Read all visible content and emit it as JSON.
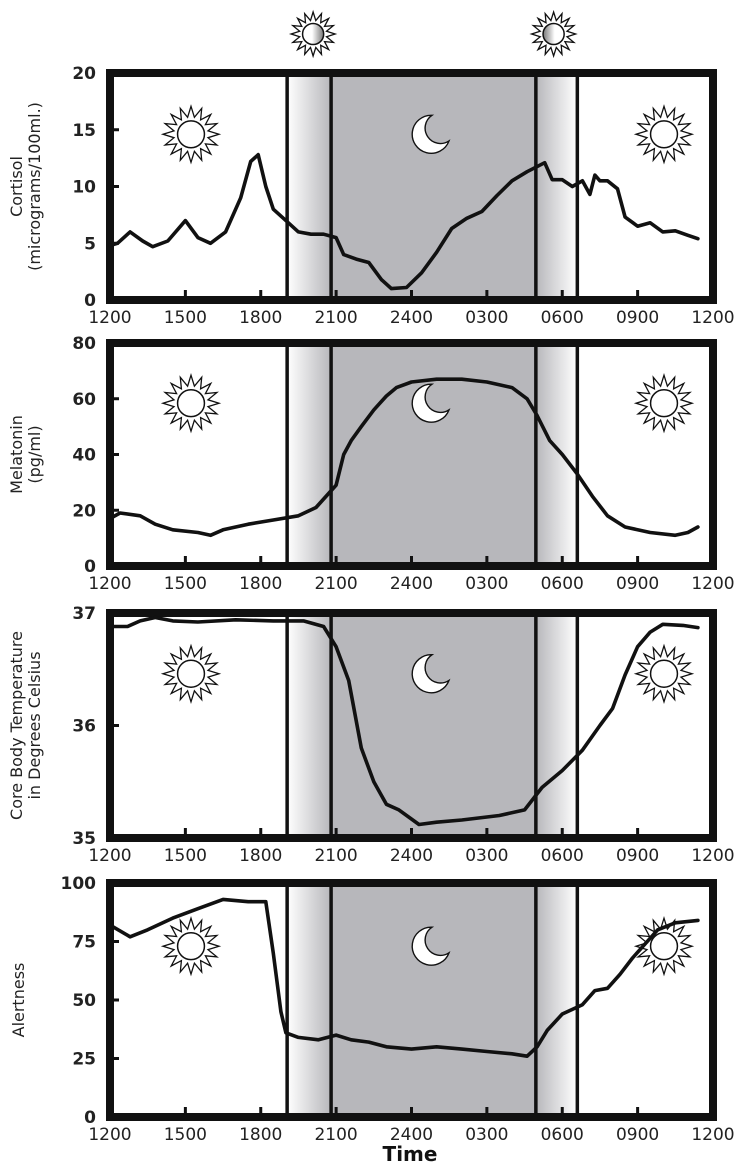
{
  "chart_data": [
    {
      "type": "line",
      "ylabel": [
        "Cortisol",
        "(micrograms/100ml.)"
      ],
      "ylim": [
        0,
        20
      ],
      "yticks": [
        "0",
        "5",
        "10",
        "15",
        "20"
      ],
      "xticks": [
        "1200",
        "1500",
        "1800",
        "2100",
        "2400",
        "0300",
        "0600",
        "0900",
        "1200"
      ],
      "points": [
        [
          0,
          4.8
        ],
        [
          0.3,
          5
        ],
        [
          0.8,
          6
        ],
        [
          1.3,
          5.2
        ],
        [
          1.7,
          4.7
        ],
        [
          2.3,
          5.2
        ],
        [
          3,
          7
        ],
        [
          3.5,
          5.5
        ],
        [
          4,
          5
        ],
        [
          4.6,
          6
        ],
        [
          5.2,
          9
        ],
        [
          5.6,
          12.2
        ],
        [
          5.9,
          12.8
        ],
        [
          6.2,
          10
        ],
        [
          6.5,
          8
        ],
        [
          7,
          7
        ],
        [
          7.5,
          6
        ],
        [
          8,
          5.8
        ],
        [
          8.5,
          5.8
        ],
        [
          9,
          5.5
        ],
        [
          9.3,
          4
        ],
        [
          9.8,
          3.6
        ],
        [
          10.3,
          3.3
        ],
        [
          10.8,
          1.8
        ],
        [
          11.2,
          1
        ],
        [
          11.8,
          1.1
        ],
        [
          12.4,
          2.4
        ],
        [
          13,
          4.2
        ],
        [
          13.6,
          6.3
        ],
        [
          14.2,
          7.2
        ],
        [
          14.8,
          7.8
        ],
        [
          15.4,
          9.2
        ],
        [
          16,
          10.5
        ],
        [
          16.6,
          11.3
        ],
        [
          17.3,
          12.1
        ],
        [
          17.6,
          10.6
        ],
        [
          18,
          10.6
        ],
        [
          18.4,
          10
        ],
        [
          18.8,
          10.5
        ],
        [
          19.1,
          9.3
        ],
        [
          19.3,
          11
        ],
        [
          19.5,
          10.5
        ],
        [
          19.8,
          10.5
        ],
        [
          20.2,
          9.8
        ],
        [
          20.5,
          7.3
        ],
        [
          21,
          6.5
        ],
        [
          21.5,
          6.8
        ],
        [
          22,
          6
        ],
        [
          22.5,
          6.1
        ],
        [
          23,
          5.7
        ],
        [
          23.4,
          5.4
        ]
      ]
    },
    {
      "type": "line",
      "ylabel": [
        "Melatonin",
        "(pg/ml)"
      ],
      "ylim": [
        0,
        80
      ],
      "yticks": [
        "0",
        "20",
        "40",
        "60",
        "80"
      ],
      "xticks": [
        "1200",
        "1500",
        "1800",
        "2100",
        "2400",
        "0300",
        "0600",
        "0900",
        "1200"
      ],
      "points": [
        [
          0,
          17
        ],
        [
          0.4,
          19
        ],
        [
          1.2,
          18
        ],
        [
          1.8,
          15
        ],
        [
          2.5,
          13
        ],
        [
          3.5,
          12
        ],
        [
          4,
          11
        ],
        [
          4.5,
          13
        ],
        [
          5.5,
          15
        ],
        [
          6.5,
          16.5
        ],
        [
          7.5,
          18
        ],
        [
          8.2,
          21
        ],
        [
          8.7,
          26
        ],
        [
          9,
          29
        ],
        [
          9.3,
          40
        ],
        [
          9.6,
          45
        ],
        [
          10,
          50
        ],
        [
          10.5,
          56
        ],
        [
          11,
          61
        ],
        [
          11.4,
          64
        ],
        [
          12,
          66
        ],
        [
          13,
          67
        ],
        [
          14,
          67
        ],
        [
          15,
          66
        ],
        [
          16,
          64
        ],
        [
          16.6,
          60
        ],
        [
          17,
          54
        ],
        [
          17.5,
          45
        ],
        [
          18,
          40
        ],
        [
          18.6,
          33
        ],
        [
          19.2,
          25
        ],
        [
          19.8,
          18
        ],
        [
          20.5,
          14
        ],
        [
          21.5,
          12
        ],
        [
          22.5,
          11
        ],
        [
          23,
          12
        ],
        [
          23.4,
          14
        ]
      ]
    },
    {
      "type": "line",
      "ylabel": [
        "Core Body Temperature",
        "in Degrees Celsius"
      ],
      "ylim": [
        35,
        37
      ],
      "yticks": [
        "35",
        "36",
        "37"
      ],
      "xticks": [
        "1200",
        "1500",
        "1800",
        "2100",
        "2400",
        "0300",
        "0600",
        "0900",
        "1200"
      ],
      "points": [
        [
          0,
          36.88
        ],
        [
          0.7,
          36.88
        ],
        [
          1.2,
          36.93
        ],
        [
          1.8,
          36.96
        ],
        [
          2.5,
          36.93
        ],
        [
          3.5,
          36.92
        ],
        [
          5,
          36.94
        ],
        [
          6.5,
          36.93
        ],
        [
          7.7,
          36.93
        ],
        [
          8.5,
          36.88
        ],
        [
          9,
          36.7
        ],
        [
          9.5,
          36.4
        ],
        [
          10,
          35.8
        ],
        [
          10.5,
          35.5
        ],
        [
          11,
          35.3
        ],
        [
          11.5,
          35.25
        ],
        [
          12.3,
          35.12
        ],
        [
          13,
          35.14
        ],
        [
          14,
          35.16
        ],
        [
          15.5,
          35.2
        ],
        [
          16.5,
          35.25
        ],
        [
          17.2,
          35.45
        ],
        [
          18,
          35.6
        ],
        [
          18.8,
          35.78
        ],
        [
          19.5,
          36
        ],
        [
          20,
          36.15
        ],
        [
          20.5,
          36.45
        ],
        [
          21,
          36.7
        ],
        [
          21.5,
          36.83
        ],
        [
          22,
          36.9
        ],
        [
          22.8,
          36.89
        ],
        [
          23.4,
          36.87
        ]
      ]
    },
    {
      "type": "line",
      "ylabel": [
        "Alertness"
      ],
      "ylim": [
        0,
        100
      ],
      "yticks": [
        "0",
        "25",
        "50",
        "75",
        "100"
      ],
      "xticks": [
        "1200",
        "1500",
        "1800",
        "2100",
        "2400",
        "0300",
        "0600",
        "0900",
        "1200"
      ],
      "xlabel": "Time",
      "points": [
        [
          0,
          82
        ],
        [
          0.8,
          77
        ],
        [
          1.5,
          80
        ],
        [
          2.5,
          85
        ],
        [
          3.5,
          89
        ],
        [
          4.5,
          93
        ],
        [
          5.5,
          92
        ],
        [
          6.2,
          92
        ],
        [
          6.5,
          70
        ],
        [
          6.8,
          45
        ],
        [
          7,
          36
        ],
        [
          7.5,
          34
        ],
        [
          8.3,
          33
        ],
        [
          9,
          35
        ],
        [
          9.6,
          33
        ],
        [
          10.3,
          32
        ],
        [
          11,
          30
        ],
        [
          12,
          29
        ],
        [
          13,
          30
        ],
        [
          14,
          29
        ],
        [
          15,
          28
        ],
        [
          16,
          27
        ],
        [
          16.6,
          26
        ],
        [
          17,
          30
        ],
        [
          17.4,
          37
        ],
        [
          18,
          44
        ],
        [
          18.8,
          48
        ],
        [
          19.3,
          54
        ],
        [
          19.8,
          55
        ],
        [
          20.3,
          61
        ],
        [
          20.8,
          68
        ],
        [
          21.3,
          74
        ],
        [
          21.8,
          80
        ],
        [
          22.5,
          83
        ],
        [
          23.4,
          84
        ]
      ]
    }
  ]
}
